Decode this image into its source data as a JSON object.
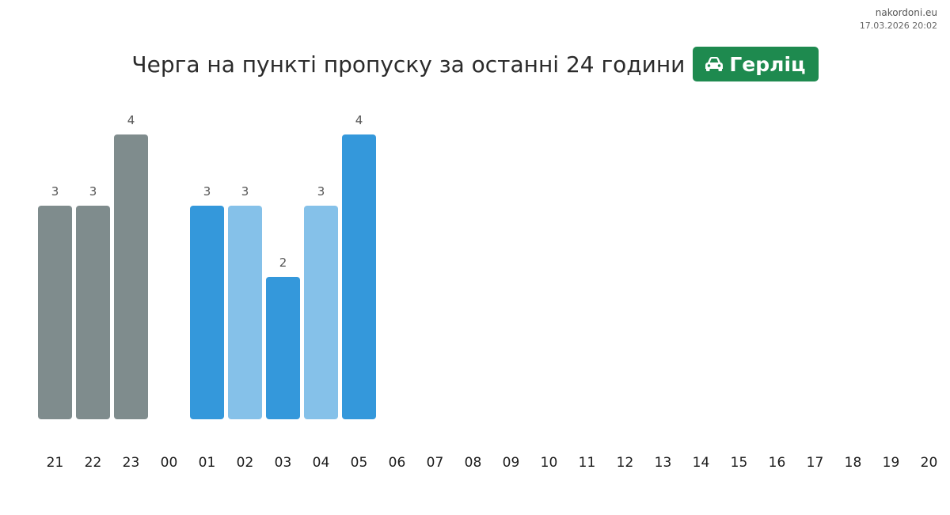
{
  "header": {
    "site": "nakordoni.eu",
    "timestamp": "17.03.2026 20:02",
    "title": "Черга на пункті пропуску за останні 24 години",
    "checkpoint": "Герліц"
  },
  "colors": {
    "previous_day": "#7f8c8d",
    "current_dark": "#3498db",
    "current_light": "#85c1e9",
    "badge": "#1e8a4f"
  },
  "chart_data": {
    "type": "bar",
    "title": "Черга на пункті пропуску за останні 24 години",
    "xlabel": "",
    "ylabel": "",
    "ylim": [
      0,
      4
    ],
    "grid": false,
    "categories": [
      "21",
      "22",
      "23",
      "00",
      "01",
      "02",
      "03",
      "04",
      "05",
      "06",
      "07",
      "08",
      "09",
      "10",
      "11",
      "12",
      "13",
      "14",
      "15",
      "16",
      "17",
      "18",
      "19",
      "20"
    ],
    "values": [
      3,
      3,
      4,
      null,
      3,
      3,
      2,
      3,
      4,
      null,
      null,
      null,
      null,
      null,
      null,
      null,
      null,
      null,
      null,
      null,
      null,
      null,
      null,
      null
    ],
    "bar_colors": [
      "previous_day",
      "previous_day",
      "previous_day",
      null,
      "current_dark",
      "current_light",
      "current_dark",
      "current_light",
      "current_dark",
      null,
      null,
      null,
      null,
      null,
      null,
      null,
      null,
      null,
      null,
      null,
      null,
      null,
      null,
      null
    ]
  }
}
